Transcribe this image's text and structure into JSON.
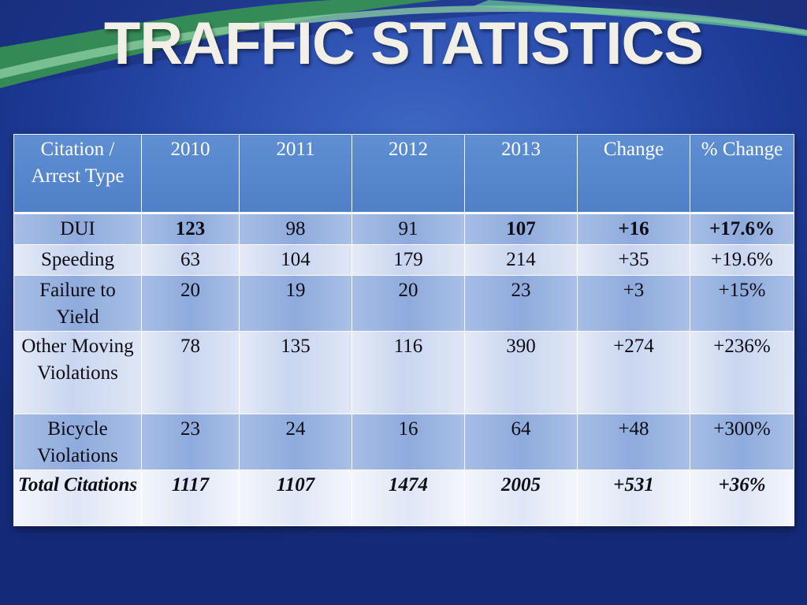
{
  "slide": {
    "title": "TRAFFIC STATISTICS"
  },
  "colors": {
    "header_bg": "#4f7fc6",
    "odd_row_bg": "#8fabdc",
    "even_row_bg": "#c9d6ef",
    "title_text": "#f1efe6",
    "background": "#2c4fb0"
  },
  "table": {
    "headers": [
      "Citation / Arrest Type",
      "2010",
      "2011",
      "2012",
      "2013",
      "Change",
      "% Change"
    ],
    "rows": [
      {
        "type": "DUI",
        "y2010": "123",
        "y2011": "98",
        "y2012": "91",
        "y2013": "107",
        "change": "+16",
        "pct": "+17.6%"
      },
      {
        "type": "Speeding",
        "y2010": "63",
        "y2011": "104",
        "y2012": "179",
        "y2013": "214",
        "change": "+35",
        "pct": "+19.6%"
      },
      {
        "type": "Failure to Yield",
        "y2010": "20",
        "y2011": "19",
        "y2012": "20",
        "y2013": "23",
        "change": "+3",
        "pct": "+15%"
      },
      {
        "type": "Other Moving Violations",
        "y2010": "78",
        "y2011": "135",
        "y2012": "116",
        "y2013": "390",
        "change": "+274",
        "pct": "+236%"
      },
      {
        "type": "Bicycle Violations",
        "y2010": "23",
        "y2011": "24",
        "y2012": "16",
        "y2013": "64",
        "change": "+48",
        "pct": "+300%"
      }
    ],
    "total": {
      "type": "Total Citations",
      "y2010": "1117",
      "y2011": "1107",
      "y2012": "1474",
      "y2013": "2005",
      "change": "+531",
      "pct": "+36%"
    }
  }
}
